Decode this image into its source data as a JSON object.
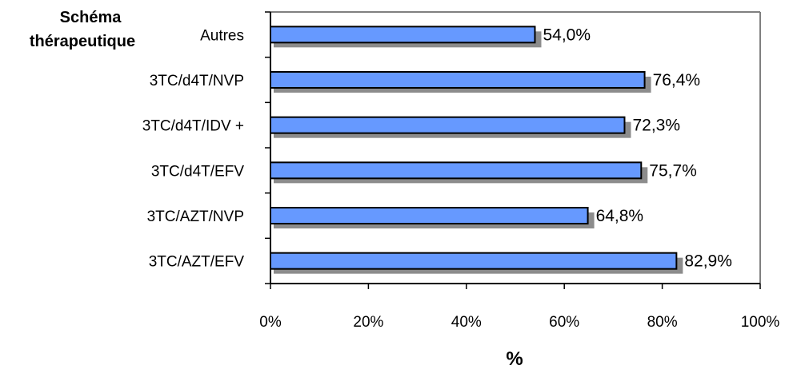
{
  "chart_data": {
    "type": "bar",
    "orientation": "horizontal",
    "title": "",
    "ylabel_lines": [
      "Schéma",
      "thérapeutique"
    ],
    "xlabel": "%",
    "categories": [
      "Autres",
      "3TC/d4T/NVP",
      "3TC/d4T/IDV +",
      "3TC/d4T/EFV",
      "3TC/AZT/NVP",
      "3TC/AZT/EFV"
    ],
    "values": [
      54.0,
      76.4,
      72.3,
      75.7,
      64.8,
      82.9
    ],
    "value_labels": [
      "54,0%",
      "76,4%",
      "72,3%",
      "75,7%",
      "64,8%",
      "82,9%"
    ],
    "xlim": [
      0,
      100
    ],
    "xticks": [
      0,
      20,
      40,
      60,
      80,
      100
    ],
    "xtick_labels": [
      "0%",
      "20%",
      "40%",
      "60%",
      "80%",
      "100%"
    ],
    "grid": false,
    "legend": "none",
    "colors": {
      "bar": "#6699ff",
      "shadow": "#8c8c8c",
      "border": "#000000",
      "frame": "#808080"
    }
  }
}
